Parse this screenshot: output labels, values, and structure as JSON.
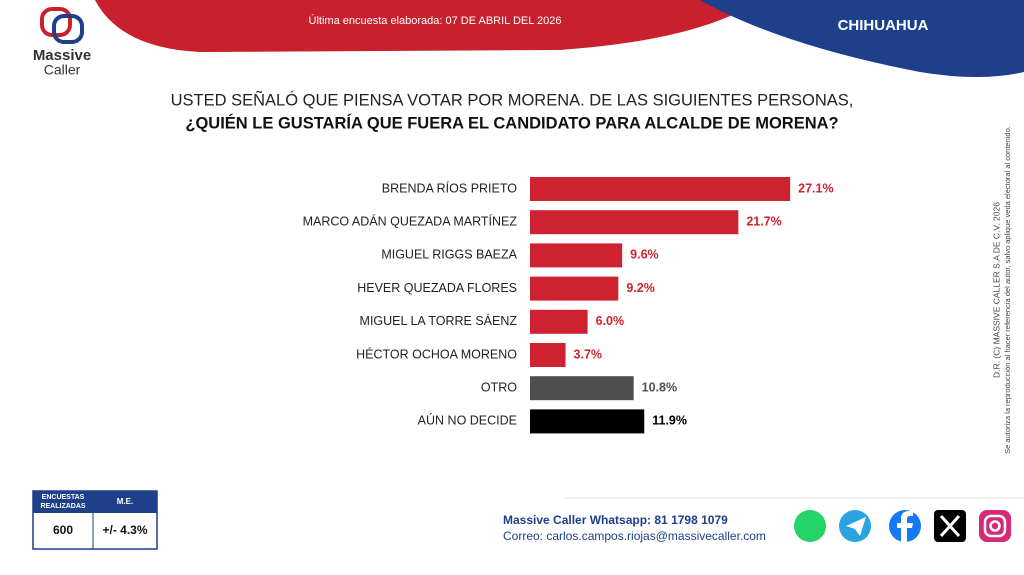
{
  "chart_data": {
    "type": "barh",
    "title": [
      "USTED SEÑALÓ QUE PIENSA VOTAR POR MORENA. DE LAS SIGUIENTES PERSONAS,",
      "¿QUIÉN LE GUSTARÍA QUE FUERA EL CANDIDATO PARA ALCALDE DE MORENA?"
    ],
    "categories": [
      "BRENDA RÍOS PRIETO",
      "MARCO ADÁN QUEZADA MARTÍNEZ",
      "MIGUEL RIGGS BAEZA",
      "HEVER QUEZADA FLORES",
      "MIGUEL LA TORRE SÁENZ",
      "HÉCTOR OCHOA MORENO",
      "OTRO",
      "AÚN NO DECIDE"
    ],
    "values": [
      27.1,
      21.7,
      9.6,
      9.2,
      6.0,
      3.7,
      10.8,
      11.9
    ],
    "value_labels": [
      "27.1%",
      "21.7%",
      "9.6%",
      "9.2%",
      "6.0%",
      "3.7%",
      "10.8%",
      "11.9%"
    ],
    "colors": [
      "#cf2230",
      "#cf2230",
      "#cf2230",
      "#cf2230",
      "#cf2230",
      "#cf2230",
      "#4f4f4f",
      "#000000"
    ]
  },
  "header": {
    "logo": [
      "Massive",
      "Caller"
    ],
    "date": "Última encuesta elaborada: 07 DE ABRIL DEL 2026",
    "region": "CHIHUAHUA"
  },
  "side_note": [
    "D.R. (C) MASSIVE CALLER S.A DE C.V. 2026",
    "Se autoriza la reproducción al hacer referencia del autor, salvo aplique veda electoral al contenido."
  ],
  "footer": {
    "table": {
      "headers": [
        [
          "ENCUESTAS",
          "REALIZADAS"
        ],
        "M.E."
      ],
      "values": [
        "600",
        "+/- 4.3%"
      ]
    },
    "contact": [
      "Massive Caller Whatsapp: 81 1798 1079",
      "Correo: carlos.campos.riojas@massivecaller.com"
    ]
  }
}
